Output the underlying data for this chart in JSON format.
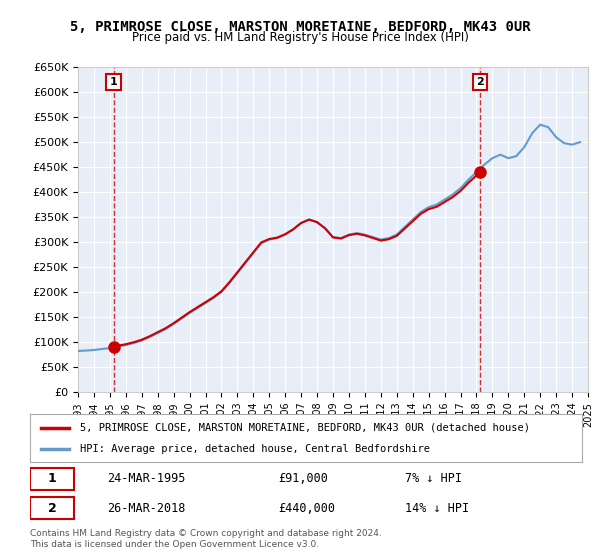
{
  "title": "5, PRIMROSE CLOSE, MARSTON MORETAINE, BEDFORD, MK43 0UR",
  "subtitle": "Price paid vs. HM Land Registry's House Price Index (HPI)",
  "ylabel_ticks": [
    "£0",
    "£50K",
    "£100K",
    "£150K",
    "£200K",
    "£250K",
    "£300K",
    "£350K",
    "£400K",
    "£450K",
    "£500K",
    "£550K",
    "£600K",
    "£650K"
  ],
  "ytick_values": [
    0,
    50000,
    100000,
    150000,
    200000,
    250000,
    300000,
    350000,
    400000,
    450000,
    500000,
    550000,
    600000,
    650000
  ],
  "xlim": [
    1993,
    2025
  ],
  "ylim": [
    0,
    650000
  ],
  "background_color": "#e8eef8",
  "plot_bg_color": "#e8eef8",
  "grid_color": "#ffffff",
  "hpi_color": "#6699cc",
  "price_color": "#cc0000",
  "legend_label_price": "5, PRIMROSE CLOSE, MARSTON MORETAINE, BEDFORD, MK43 0UR (detached house)",
  "legend_label_hpi": "HPI: Average price, detached house, Central Bedfordshire",
  "transaction1_date": "24-MAR-1995",
  "transaction1_price": 91000,
  "transaction1_note": "7% ↓ HPI",
  "transaction1_year": 1995.23,
  "transaction2_date": "26-MAR-2018",
  "transaction2_price": 440000,
  "transaction2_note": "14% ↓ HPI",
  "transaction2_year": 2018.23,
  "footer": "Contains HM Land Registry data © Crown copyright and database right 2024.\nThis data is licensed under the Open Government Licence v3.0.",
  "hpi_years": [
    1993,
    1993.5,
    1994,
    1994.5,
    1995,
    1995.5,
    1996,
    1996.5,
    1997,
    1997.5,
    1998,
    1998.5,
    1999,
    1999.5,
    2000,
    2000.5,
    2001,
    2001.5,
    2002,
    2002.5,
    2003,
    2003.5,
    2004,
    2004.5,
    2005,
    2005.5,
    2006,
    2006.5,
    2007,
    2007.5,
    2008,
    2008.5,
    2009,
    2009.5,
    2010,
    2010.5,
    2011,
    2011.5,
    2012,
    2012.5,
    2013,
    2013.5,
    2014,
    2014.5,
    2015,
    2015.5,
    2016,
    2016.5,
    2017,
    2017.5,
    2018,
    2018.5,
    2019,
    2019.5,
    2020,
    2020.5,
    2021,
    2021.5,
    2022,
    2022.5,
    2023,
    2023.5,
    2024,
    2024.5
  ],
  "hpi_values": [
    82000,
    83000,
    84000,
    86000,
    88000,
    91000,
    94000,
    98000,
    103000,
    110000,
    118000,
    126000,
    136000,
    147000,
    158000,
    168000,
    178000,
    188000,
    200000,
    218000,
    238000,
    258000,
    278000,
    298000,
    305000,
    308000,
    315000,
    325000,
    338000,
    345000,
    340000,
    328000,
    310000,
    308000,
    315000,
    318000,
    315000,
    310000,
    305000,
    308000,
    315000,
    330000,
    345000,
    360000,
    370000,
    375000,
    385000,
    395000,
    408000,
    425000,
    440000,
    455000,
    468000,
    475000,
    468000,
    472000,
    490000,
    518000,
    535000,
    530000,
    510000,
    498000,
    495000,
    500000
  ]
}
